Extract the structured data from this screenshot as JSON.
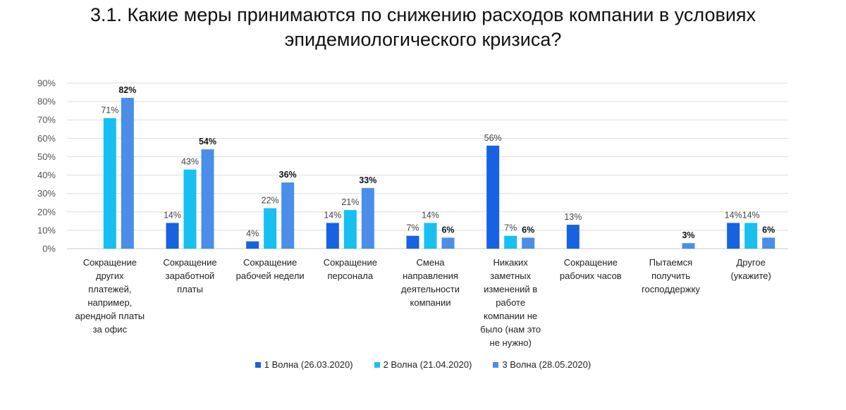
{
  "title_line1": "3.1. Какие меры принимаются по снижению расходов компании в условиях",
  "title_line2": "эпидемиологического кризиса?",
  "chart_data": {
    "type": "bar",
    "title": "3.1. Какие меры принимаются по снижению расходов компании в условиях эпидемиологического кризиса?",
    "ylim": [
      0,
      90
    ],
    "yticks": [
      "0%",
      "10%",
      "20%",
      "30%",
      "40%",
      "50%",
      "60%",
      "70%",
      "80%",
      "90%"
    ],
    "grid": true,
    "legend_position": "bottom",
    "categories": [
      "Сокращение других платежей, например, арендной платы за офис",
      "Сокращение заработной платы",
      "Сокращение рабочей недели",
      "Сокращение персонала",
      "Смена направления деятельности компании",
      "Никаких заметных изменений в работе компании не было (нам это не нужно)",
      "Сокращение рабочих часов",
      "Пытаемся получить господдержку",
      "Другое (укажите)"
    ],
    "category_lines": [
      [
        "Сокращение",
        "других",
        "платежей,",
        "например,",
        "арендной платы",
        "за офис"
      ],
      [
        "Сокращение",
        "заработной",
        "платы"
      ],
      [
        "Сокращение",
        "рабочей недели"
      ],
      [
        "Сокращение",
        "персонала"
      ],
      [
        "Смена",
        "направления",
        "деятельности",
        "компании"
      ],
      [
        "Никаких",
        "заметных",
        "изменений в",
        "работе",
        "компании не",
        "было (нам это",
        "не нужно)"
      ],
      [
        "Сокращение",
        "рабочих часов"
      ],
      [
        "Пытаемся",
        "получить",
        "господдержку"
      ],
      [
        "Другое",
        "(укажите)"
      ]
    ],
    "series": [
      {
        "name": "1 Волна (26.03.2020)",
        "color": "#1762e0",
        "values": [
          null,
          14,
          4,
          14,
          7,
          56,
          13,
          null,
          14
        ],
        "labels": [
          "",
          "14%",
          "4%",
          "14%",
          "7%",
          "56%",
          "13%",
          "",
          "14%"
        ]
      },
      {
        "name": "2 Волна (21.04.2020)",
        "color": "#17c0f0",
        "values": [
          71,
          43,
          22,
          21,
          14,
          7,
          null,
          null,
          14
        ],
        "labels": [
          "71%",
          "43%",
          "22%",
          "21%",
          "14%",
          "7%",
          "",
          "",
          "14%"
        ]
      },
      {
        "name": "3 Волна (28.05.2020)",
        "color": "#4a8eea",
        "values": [
          82,
          54,
          36,
          33,
          6,
          6,
          null,
          3,
          6
        ],
        "labels": [
          "82%",
          "54%",
          "36%",
          "33%",
          "6%",
          "6%",
          "",
          "3%",
          "6%"
        ]
      }
    ]
  }
}
